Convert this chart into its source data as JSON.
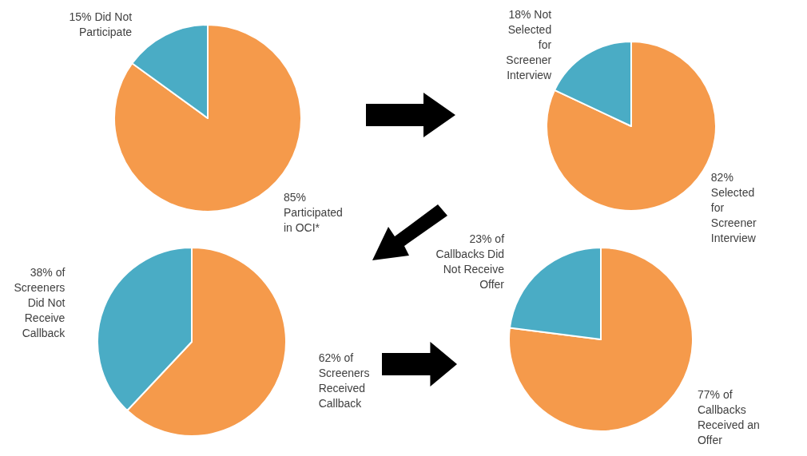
{
  "chart_data": [
    {
      "type": "pie",
      "categories": [
        "Participated in OCI*",
        "Did Not Participate"
      ],
      "values": [
        85,
        15
      ],
      "value_labels": [
        "85%",
        "15%"
      ],
      "colors": [
        "#f59a4b",
        "#4aacc5"
      ]
    },
    {
      "type": "pie",
      "categories": [
        "Selected for Screener Interview",
        "Not Selected for Screener Interview"
      ],
      "values": [
        82,
        18
      ],
      "value_labels": [
        "82%",
        "18%"
      ],
      "colors": [
        "#f59a4b",
        "#4aacc5"
      ]
    },
    {
      "type": "pie",
      "categories": [
        "of Screeners Received Callback",
        "of Screeners Did Not Receive Callback"
      ],
      "values": [
        62,
        38
      ],
      "value_labels": [
        "62%",
        "38%"
      ],
      "colors": [
        "#f59a4b",
        "#4aacc5"
      ]
    },
    {
      "type": "pie",
      "categories": [
        "of Callbacks Received an Offer",
        "of Callbacks Did Not Receive Offer"
      ],
      "values": [
        77,
        23
      ],
      "value_labels": [
        "77%",
        "23%"
      ],
      "colors": [
        "#f59a4b",
        "#4aacc5"
      ]
    }
  ]
}
